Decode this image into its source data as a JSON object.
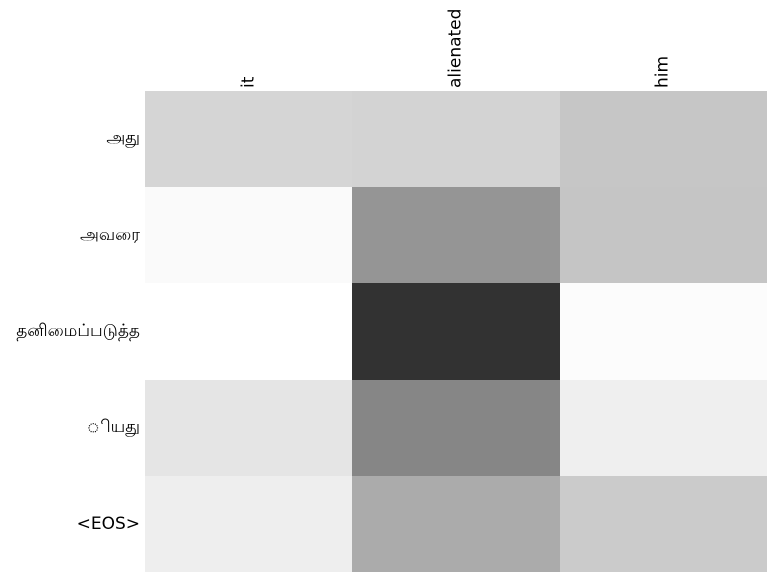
{
  "figure": {
    "background": "#ffffff",
    "text_color": "#000000"
  },
  "chart_data": {
    "type": "heatmap",
    "title": "",
    "xlabel": "",
    "ylabel": "",
    "columns": [
      "it",
      "alienated",
      "him"
    ],
    "rows": [
      "அது",
      "அவரை",
      "தனிமைப்படுத்த",
      "ியது",
      "<EOS>"
    ],
    "colormap": "gray",
    "legend": "none",
    "grid": "off",
    "column_label_rotation_deg": 90,
    "values": [
      [
        0.84,
        0.83,
        0.78
      ],
      [
        0.98,
        0.58,
        0.77
      ],
      [
        1.0,
        0.2,
        0.99
      ],
      [
        0.9,
        0.53,
        0.94
      ],
      [
        0.93,
        0.67,
        0.8
      ]
    ],
    "cell_colors": [
      [
        "#d5d5d5",
        "#d3d3d3",
        "#c6c6c6"
      ],
      [
        "#fafafa",
        "#959595",
        "#c5c5c5"
      ],
      [
        "#ffffff",
        "#323232",
        "#fcfcfc"
      ],
      [
        "#e5e5e5",
        "#868686",
        "#efefef"
      ],
      [
        "#eeeeee",
        "#ababab",
        "#cbcbcb"
      ]
    ]
  }
}
